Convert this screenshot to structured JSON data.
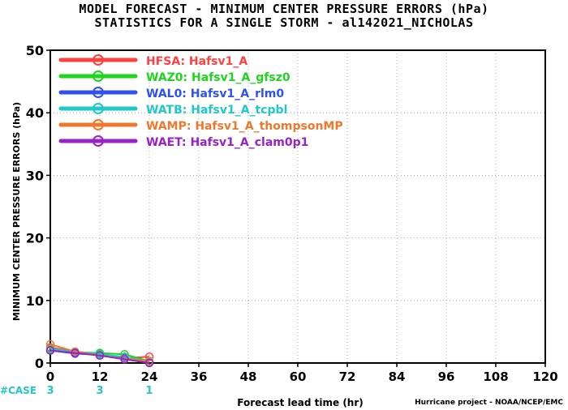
{
  "header": {
    "title": "MODEL FORECAST - MINIMUM CENTER PRESSURE ERRORS (hPa)",
    "subtitle": "STATISTICS FOR A SINGLE STORM - al142021_NICHOLAS"
  },
  "credit": "Hurricane project - NOAA/NCEP/EMC",
  "chart_data": {
    "type": "line",
    "title": "MODEL FORECAST - MINIMUM CENTER PRESSURE ERRORS (hPa)",
    "subtitle": "STATISTICS FOR A SINGLE STORM - al142021_NICHOLAS",
    "xlabel": "Forecast lead time (hr)",
    "ylabel": "MINIMUM CENTER PRESSURE ERRORS (hPa)",
    "xlim": [
      0,
      120
    ],
    "ylim": [
      0,
      50
    ],
    "xticks": [
      0,
      12,
      24,
      36,
      48,
      60,
      72,
      84,
      96,
      108,
      120
    ],
    "yticks": [
      0,
      10,
      20,
      30,
      40,
      50
    ],
    "grid": true,
    "legend_position": "top-left",
    "case_label": "#CASE",
    "cases": [
      {
        "x": 0,
        "count": "3"
      },
      {
        "x": 12,
        "count": "3"
      },
      {
        "x": 24,
        "count": "1"
      }
    ],
    "series": [
      {
        "name": "HFSA: Hafsv1_A",
        "color": "#ff4040",
        "x": [
          0,
          6,
          12,
          18,
          24
        ],
        "y": [
          2.5,
          1.8,
          1.5,
          0.8,
          1.0
        ]
      },
      {
        "name": "WAZ0: Hafsv1_A_gfsz0",
        "color": "#1ed61e",
        "x": [
          0,
          6,
          12,
          18,
          24
        ],
        "y": [
          2.2,
          1.7,
          1.6,
          1.4,
          0.3
        ]
      },
      {
        "name": "WAL0: Hafsv1_A_rlm0",
        "color": "#3050f0",
        "x": [
          0,
          6,
          12,
          18,
          24
        ],
        "y": [
          2.0,
          1.5,
          1.3,
          0.8,
          0.2
        ]
      },
      {
        "name": "WATB: Hafsv1_A_tcpbl",
        "color": "#20c8c8",
        "x": [
          0,
          6,
          12,
          18,
          24
        ],
        "y": [
          2.3,
          1.8,
          1.4,
          1.0,
          0.2
        ]
      },
      {
        "name": "WAMP: Hafsv1_A_thompsonMP",
        "color": "#f0782d",
        "x": [
          0,
          6,
          12,
          18,
          24
        ],
        "y": [
          3.0,
          1.8,
          1.2,
          0.7,
          0.3
        ]
      },
      {
        "name": "WAET: Hafsv1_A_clam0p1",
        "color": "#9a20c8",
        "x": [
          0,
          6,
          12,
          18,
          24
        ],
        "y": [
          2.0,
          1.6,
          1.2,
          0.6,
          0.0
        ]
      }
    ]
  }
}
